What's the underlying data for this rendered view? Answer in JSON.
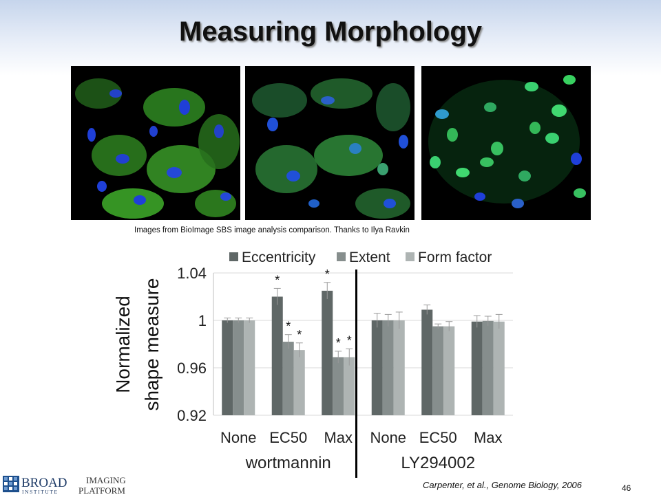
{
  "slide": {
    "title": "Measuring Morphology",
    "image_caption": "Images from BioImage SBS image analysis comparison. Thanks to Ilya Ravkin",
    "citation": "Carpenter, et al., Genome Biology, 2006",
    "page_number": "46",
    "logo": {
      "line1": "BROAD",
      "line2": "INSTITUTE",
      "line3": "IMAGING",
      "line4": "PLATFORM"
    },
    "micrographs": [
      {
        "name": "control-cells",
        "cytoplasm_color": "#3fae2a",
        "nucleus_color": "#1f3fd8"
      },
      {
        "name": "treated-cells-partial",
        "cytoplasm_color": "#2f9a3a",
        "nucleus_color": "#2050d8"
      },
      {
        "name": "treated-cells-translocated",
        "cytoplasm_color": "#062a10",
        "nucleus_color": "#38d060"
      }
    ]
  },
  "chart_data": {
    "type": "bar",
    "ylabel": [
      "Normalized",
      "shape measure"
    ],
    "ylim": [
      0.92,
      1.04
    ],
    "yticks": [
      "0.92",
      "0.96",
      "1",
      "1.04"
    ],
    "ytick_values": [
      0.92,
      0.96,
      1.0,
      1.04
    ],
    "legend_position": "top",
    "categories": [
      "None",
      "EC50",
      "Max",
      "None",
      "EC50",
      "Max"
    ],
    "groups": [
      {
        "name": "wortmannin",
        "span": [
          0,
          2
        ]
      },
      {
        "name": "LY294002",
        "span": [
          3,
          5
        ]
      }
    ],
    "series": [
      {
        "name": "Eccentricity",
        "color": "#5f6766",
        "values": [
          1.0,
          1.02,
          1.025,
          1.0,
          1.009,
          0.999
        ],
        "errors": [
          0.002,
          0.007,
          0.007,
          0.006,
          0.004,
          0.005
        ],
        "significant": [
          false,
          true,
          true,
          false,
          false,
          false
        ]
      },
      {
        "name": "Extent",
        "color": "#868e8d",
        "values": [
          1.0,
          0.982,
          0.969,
          1.0,
          0.995,
          0.9995
        ],
        "errors": [
          0.002,
          0.006,
          0.005,
          0.005,
          0.002,
          0.004
        ],
        "significant": [
          false,
          true,
          true,
          false,
          false,
          false
        ]
      },
      {
        "name": "Form factor",
        "color": "#aeb4b3",
        "values": [
          1.0,
          0.975,
          0.969,
          1.0,
          0.995,
          0.999
        ],
        "errors": [
          0.002,
          0.006,
          0.007,
          0.007,
          0.004,
          0.006
        ],
        "significant": [
          false,
          true,
          true,
          false,
          false,
          false
        ]
      }
    ],
    "significance_marker": "*"
  }
}
